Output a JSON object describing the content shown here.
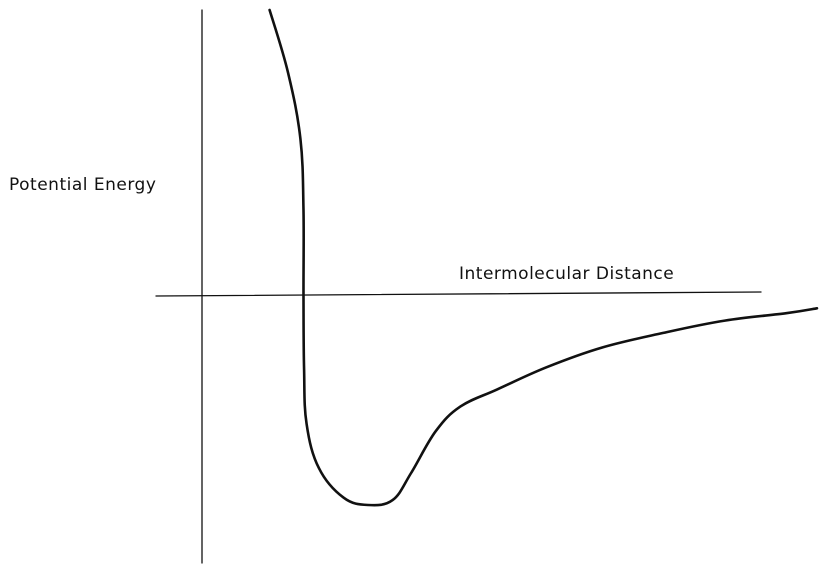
{
  "chart_data": {
    "type": "line",
    "title": "",
    "xlabel": "Intermolecular Distance",
    "ylabel": "Potential Energy",
    "grid": false,
    "legend": "none",
    "colors": {
      "ink": "#111111",
      "background": "#ffffff"
    },
    "series": [
      {
        "values_description_free": true,
        "points": [
          [
            0.11,
            1.0
          ],
          [
            0.14,
            0.78
          ],
          [
            0.16,
            0.55
          ],
          [
            0.165,
            0.3
          ],
          [
            0.165,
            0.0
          ],
          [
            0.166,
            -0.3
          ],
          [
            0.17,
            -0.52
          ],
          [
            0.19,
            -0.7
          ],
          [
            0.23,
            -0.82
          ],
          [
            0.27,
            -0.85
          ],
          [
            0.31,
            -0.83
          ],
          [
            0.34,
            -0.72
          ],
          [
            0.38,
            -0.55
          ],
          [
            0.42,
            -0.45
          ],
          [
            0.48,
            -0.38
          ],
          [
            0.56,
            -0.29
          ],
          [
            0.65,
            -0.21
          ],
          [
            0.75,
            -0.15
          ],
          [
            0.85,
            -0.1
          ],
          [
            0.95,
            -0.07
          ],
          [
            1.0,
            -0.05
          ]
        ]
      }
    ]
  }
}
